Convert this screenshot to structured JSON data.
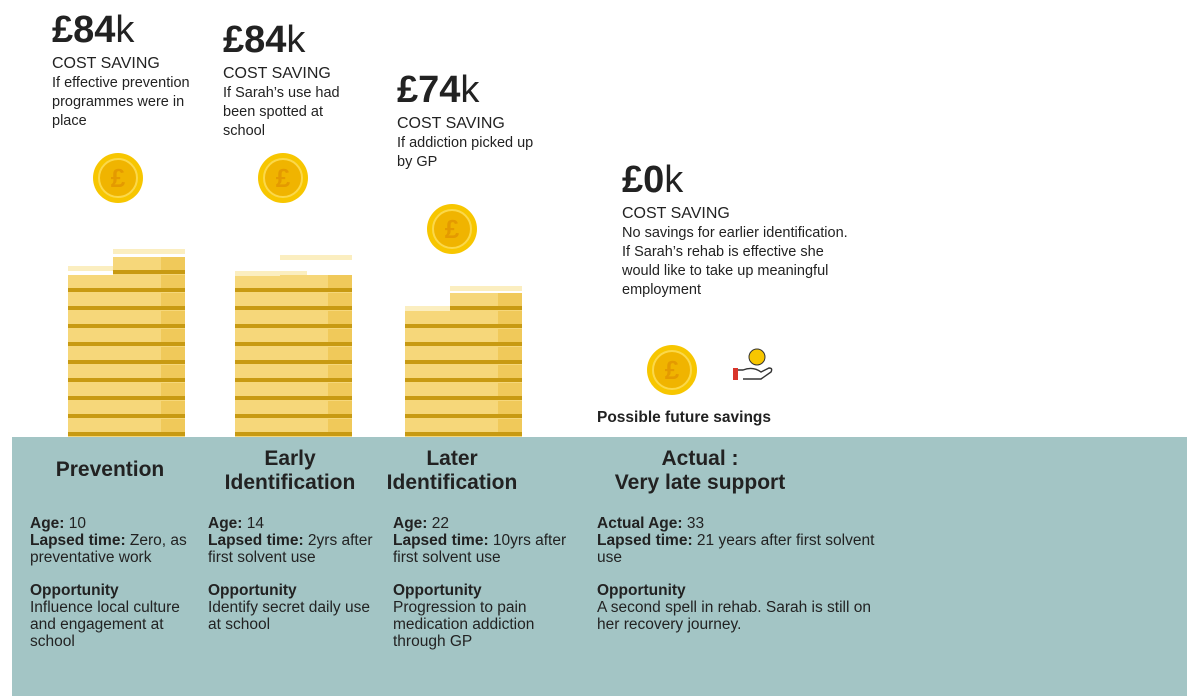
{
  "coin_symbol": "£",
  "future_savings": "Possible future savings",
  "columns": [
    {
      "amount": "£84",
      "unit": "k",
      "label": "COST SAVING",
      "note": "If effective prevention programmes were in place",
      "stage": [
        "Prevention"
      ],
      "age_label": "Age:",
      "age": "10",
      "lapsed_label": "Lapsed time:",
      "lapsed": "Zero, as preventative work",
      "opportunity_label": "Opportunity",
      "opportunity": "Influence local culture and engagement at school"
    },
    {
      "amount": "£84",
      "unit": "k",
      "label": "COST SAVING",
      "note": "If Sarah’s use had been spotted at school",
      "stage": [
        "Early",
        "Identification"
      ],
      "age_label": "Age:",
      "age": "14",
      "lapsed_label": "Lapsed time:",
      "lapsed": "2yrs after first solvent use",
      "opportunity_label": "Opportunity",
      "opportunity": "Identify secret daily use at school"
    },
    {
      "amount": "£74",
      "unit": "k",
      "label": "COST SAVING",
      "note": "If addiction picked up by GP",
      "stage": [
        "Later",
        "Identification"
      ],
      "age_label": "Age:",
      "age": "22",
      "lapsed_label": "Lapsed time:",
      "lapsed": "10yrs after first solvent use",
      "opportunity_label": "Opportunity",
      "opportunity": "Progression to pain medication addiction through GP"
    },
    {
      "amount": "£0",
      "unit": "k",
      "label": "COST SAVING",
      "note": "No savings for earlier identification. If Sarah’s rehab is effective she would like to take up meaningful employment",
      "stage": [
        "Actual :",
        "Very late support"
      ],
      "age_label": "Actual Age:",
      "age": "33",
      "lapsed_label": "Lapsed time:",
      "lapsed": "21 years after first solvent use",
      "opportunity_label": "Opportunity",
      "opportunity": "A second spell in rehab. Sarah is still on her recovery journey."
    }
  ]
}
